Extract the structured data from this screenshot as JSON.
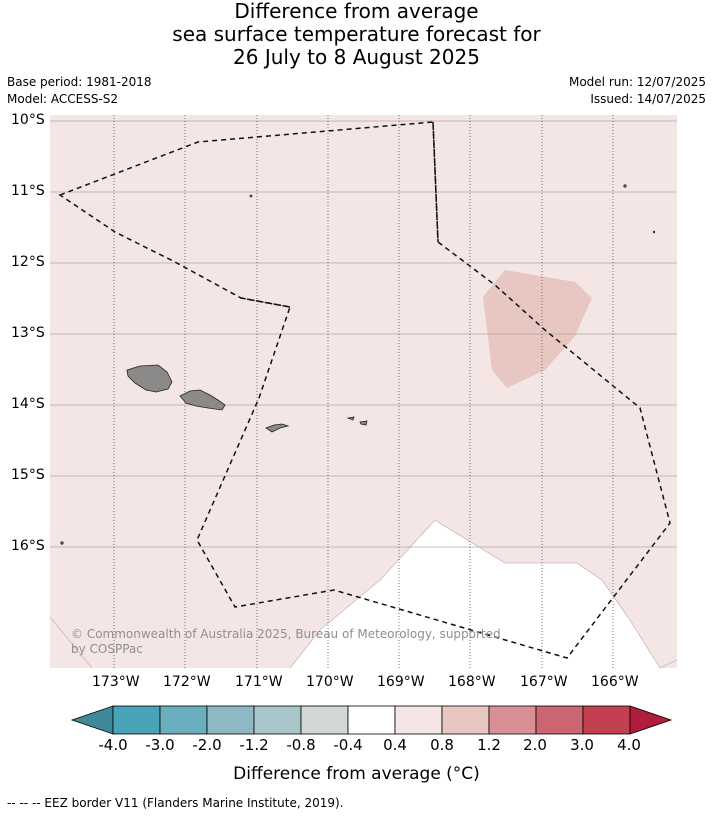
{
  "title": {
    "line1": "Difference from average",
    "line2": "sea surface temperature forecast for",
    "line3": "26 July to 8 August 2025"
  },
  "meta": {
    "base_period": "Base period: 1981-2018",
    "model": "Model: ACCESS-S2",
    "model_run": "Model run: 12/07/2025",
    "issued": "Issued: 14/07/2025"
  },
  "map": {
    "lat_labels": [
      "10°S",
      "11°S",
      "12°S",
      "13°S",
      "14°S",
      "15°S",
      "16°S"
    ],
    "lon_labels": [
      "173°W",
      "172°W",
      "171°W",
      "170°W",
      "169°W",
      "168°W",
      "167°W",
      "166°W"
    ],
    "copyright_line1": "© Commonwealth of Australia 2025, Bureau of Meteorology, supported",
    "copyright_line2": "by COSPPac",
    "colors": {
      "background_anomaly": "#f4e6e4",
      "warm_patch": "#e8c6c1",
      "neutral_patch": "#ffffff",
      "land": "#8c8a89",
      "grid": "#b0a8a6"
    }
  },
  "colorbar": {
    "title": "Difference from average (°C)",
    "tick_labels": [
      "-4.0",
      "-3.0",
      "-2.0",
      "-1.2",
      "-0.8",
      "-0.4",
      "0.4",
      "0.8",
      "1.2",
      "2.0",
      "3.0",
      "4.0"
    ],
    "colors": [
      "#3e8a9a",
      "#47a3b5",
      "#6aaebf",
      "#8eb8c4",
      "#a8c6ca",
      "#d3d7d8",
      "#ffffff",
      "#f4e6e4",
      "#e8c6c1",
      "#d88f95",
      "#cb6571",
      "#c2404f",
      "#b01c3a"
    ]
  },
  "footer": {
    "legend": "--  --  -- EEZ border V11 (Flanders Marine Institute, 2019)."
  }
}
